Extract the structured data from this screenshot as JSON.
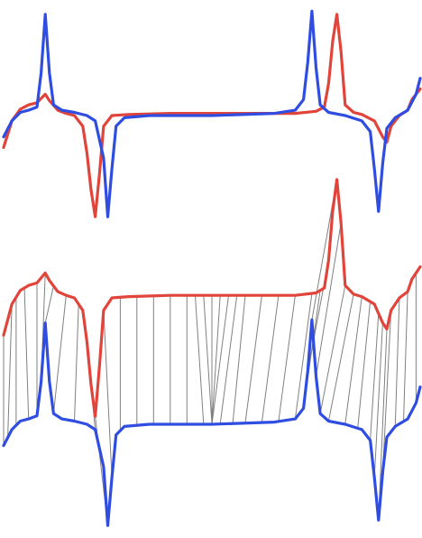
{
  "chart_data": [
    {
      "type": "line",
      "panel": "overlay",
      "title": "",
      "xlabel": "",
      "ylabel": "",
      "grid": false,
      "legend": "none",
      "xlim": [
        0,
        100
      ],
      "ylim": [
        -1,
        1
      ],
      "series": [
        {
          "color": "#e0443a",
          "points": [
            [
              0,
              -0.3
            ],
            [
              2,
              -0.05
            ],
            [
              4,
              0.06
            ],
            [
              6,
              0.1
            ],
            [
              8,
              0.12
            ],
            [
              10,
              0.2
            ],
            [
              11,
              0.14
            ],
            [
              13,
              0.05
            ],
            [
              15,
              0.02
            ],
            [
              17,
              0.0
            ],
            [
              19,
              -0.1
            ],
            [
              20,
              -0.35
            ],
            [
              21,
              -0.7
            ],
            [
              22,
              -0.95
            ],
            [
              23,
              -0.55
            ],
            [
              24,
              -0.1
            ],
            [
              26,
              0.0
            ],
            [
              30,
              0.01
            ],
            [
              40,
              0.02
            ],
            [
              50,
              0.02
            ],
            [
              60,
              0.02
            ],
            [
              70,
              0.02
            ],
            [
              75,
              0.04
            ],
            [
              77,
              0.08
            ],
            [
              78,
              0.3
            ],
            [
              79,
              0.7
            ],
            [
              80,
              0.95
            ],
            [
              81,
              0.6
            ],
            [
              82,
              0.1
            ],
            [
              84,
              0.03
            ],
            [
              86,
              0.01
            ],
            [
              89,
              -0.05
            ],
            [
              91,
              -0.2
            ],
            [
              92,
              -0.25
            ],
            [
              93,
              -0.1
            ],
            [
              95,
              0.0
            ],
            [
              97,
              0.05
            ],
            [
              98,
              0.15
            ],
            [
              100,
              0.25
            ]
          ]
        },
        {
          "color": "#2f4de0",
          "points": [
            [
              0,
              -0.2
            ],
            [
              2,
              -0.05
            ],
            [
              4,
              0.03
            ],
            [
              6,
              0.05
            ],
            [
              8,
              0.08
            ],
            [
              9,
              0.4
            ],
            [
              10,
              0.95
            ],
            [
              11,
              0.4
            ],
            [
              12,
              0.1
            ],
            [
              14,
              0.05
            ],
            [
              17,
              0.03
            ],
            [
              20,
              0.0
            ],
            [
              22,
              -0.05
            ],
            [
              24,
              -0.4
            ],
            [
              25,
              -0.95
            ],
            [
              26,
              -0.5
            ],
            [
              27,
              -0.1
            ],
            [
              29,
              -0.02
            ],
            [
              35,
              0.0
            ],
            [
              50,
              0.0
            ],
            [
              65,
              0.02
            ],
            [
              70,
              0.05
            ],
            [
              72,
              0.15
            ],
            [
              73,
              0.5
            ],
            [
              74,
              0.98
            ],
            [
              75,
              0.45
            ],
            [
              76,
              0.1
            ],
            [
              78,
              0.03
            ],
            [
              82,
              0.0
            ],
            [
              86,
              -0.05
            ],
            [
              88,
              -0.15
            ],
            [
              89,
              -0.5
            ],
            [
              90,
              -0.9
            ],
            [
              91,
              -0.45
            ],
            [
              92,
              -0.12
            ],
            [
              94,
              -0.02
            ],
            [
              97,
              0.05
            ],
            [
              99,
              0.2
            ],
            [
              100,
              0.35
            ]
          ]
        }
      ]
    },
    {
      "type": "line",
      "panel": "aligned",
      "title": "",
      "xlabel": "",
      "ylabel": "",
      "grid": false,
      "legend": "none",
      "xlim": [
        0,
        100
      ],
      "ylim": [
        -1,
        1
      ],
      "alignment_links": true,
      "link_color": "#808080",
      "series": [
        {
          "color": "#e0443a",
          "points": [
            [
              0,
              -0.3
            ],
            [
              2,
              -0.05
            ],
            [
              4,
              0.06
            ],
            [
              6,
              0.1
            ],
            [
              8,
              0.12
            ],
            [
              10,
              0.2
            ],
            [
              11,
              0.14
            ],
            [
              13,
              0.05
            ],
            [
              15,
              0.02
            ],
            [
              17,
              0.0
            ],
            [
              19,
              -0.1
            ],
            [
              20,
              -0.35
            ],
            [
              21,
              -0.7
            ],
            [
              22,
              -0.95
            ],
            [
              23,
              -0.55
            ],
            [
              24,
              -0.1
            ],
            [
              26,
              0.0
            ],
            [
              30,
              0.01
            ],
            [
              40,
              0.02
            ],
            [
              50,
              0.02
            ],
            [
              60,
              0.02
            ],
            [
              70,
              0.02
            ],
            [
              75,
              0.04
            ],
            [
              77,
              0.08
            ],
            [
              78,
              0.3
            ],
            [
              79,
              0.7
            ],
            [
              80,
              0.95
            ],
            [
              81,
              0.6
            ],
            [
              82,
              0.1
            ],
            [
              84,
              0.03
            ],
            [
              86,
              0.01
            ],
            [
              89,
              -0.05
            ],
            [
              91,
              -0.2
            ],
            [
              92,
              -0.25
            ],
            [
              93,
              -0.1
            ],
            [
              95,
              0.0
            ],
            [
              97,
              0.05
            ],
            [
              98,
              0.15
            ],
            [
              100,
              0.25
            ]
          ]
        },
        {
          "color": "#2f4de0",
          "points": [
            [
              0,
              -0.2
            ],
            [
              2,
              -0.05
            ],
            [
              4,
              0.03
            ],
            [
              6,
              0.05
            ],
            [
              8,
              0.08
            ],
            [
              9,
              0.4
            ],
            [
              10,
              0.95
            ],
            [
              11,
              0.4
            ],
            [
              12,
              0.1
            ],
            [
              14,
              0.05
            ],
            [
              17,
              0.03
            ],
            [
              20,
              0.0
            ],
            [
              22,
              -0.05
            ],
            [
              24,
              -0.4
            ],
            [
              25,
              -0.95
            ],
            [
              26,
              -0.5
            ],
            [
              27,
              -0.1
            ],
            [
              29,
              -0.02
            ],
            [
              35,
              0.0
            ],
            [
              50,
              0.0
            ],
            [
              65,
              0.02
            ],
            [
              70,
              0.05
            ],
            [
              72,
              0.15
            ],
            [
              73,
              0.5
            ],
            [
              74,
              0.98
            ],
            [
              75,
              0.45
            ],
            [
              76,
              0.1
            ],
            [
              78,
              0.03
            ],
            [
              82,
              0.0
            ],
            [
              86,
              -0.05
            ],
            [
              88,
              -0.15
            ],
            [
              89,
              -0.5
            ],
            [
              90,
              -0.9
            ],
            [
              91,
              -0.45
            ],
            [
              92,
              -0.12
            ],
            [
              94,
              -0.02
            ],
            [
              97,
              0.05
            ],
            [
              99,
              0.2
            ],
            [
              100,
              0.35
            ]
          ]
        }
      ],
      "links": [
        [
          0,
          0
        ],
        [
          2,
          1
        ],
        [
          3,
          3
        ],
        [
          5,
          6
        ],
        [
          8,
          8
        ],
        [
          10,
          9
        ],
        [
          12,
          10
        ],
        [
          15,
          12
        ],
        [
          18,
          17
        ],
        [
          20,
          22
        ],
        [
          22,
          25
        ],
        [
          24,
          26
        ],
        [
          28,
          28
        ],
        [
          32,
          32
        ],
        [
          36,
          36
        ],
        [
          40,
          40
        ],
        [
          44,
          44
        ],
        [
          46,
          48
        ],
        [
          48,
          50
        ],
        [
          50,
          50
        ],
        [
          52,
          50
        ],
        [
          54,
          50
        ],
        [
          56,
          52
        ],
        [
          58,
          55
        ],
        [
          62,
          58
        ],
        [
          66,
          62
        ],
        [
          70,
          66
        ],
        [
          74,
          70
        ],
        [
          76,
          72
        ],
        [
          78,
          73
        ],
        [
          80,
          74
        ],
        [
          81,
          75
        ],
        [
          82,
          76
        ],
        [
          84,
          78
        ],
        [
          86,
          82
        ],
        [
          88,
          85
        ],
        [
          90,
          88
        ],
        [
          91,
          89
        ],
        [
          92,
          90
        ],
        [
          93,
          91
        ],
        [
          95,
          94
        ],
        [
          97,
          96
        ],
        [
          99,
          99
        ]
      ]
    }
  ]
}
